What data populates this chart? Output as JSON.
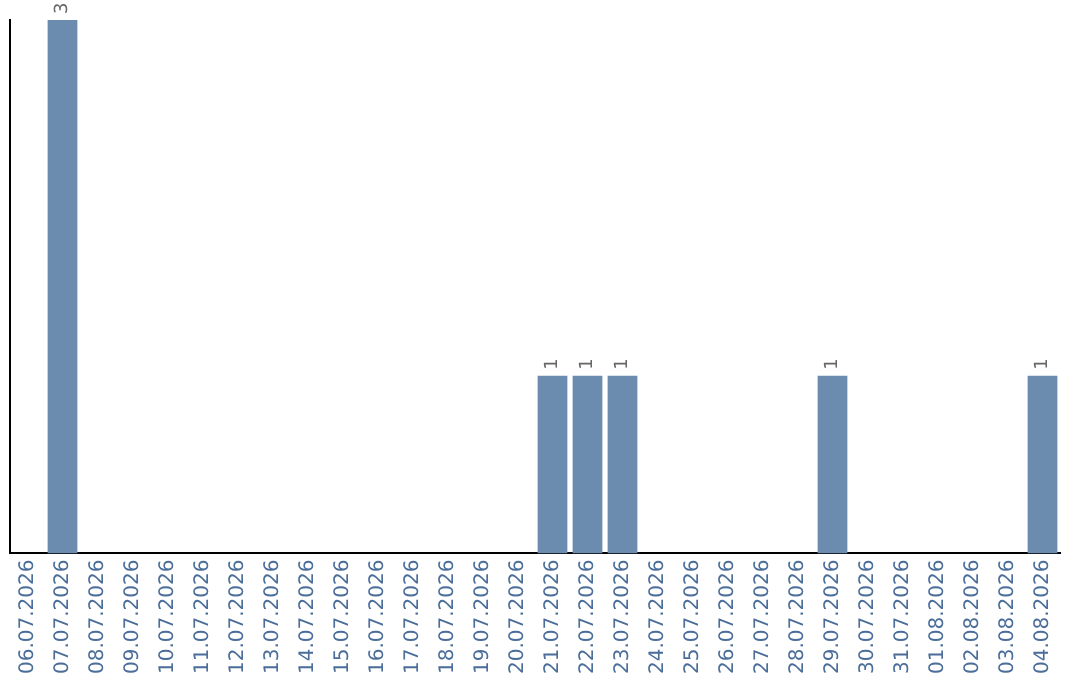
{
  "chart_data": {
    "type": "bar",
    "categories": [
      "06.07.2026",
      "07.07.2026",
      "08.07.2026",
      "09.07.2026",
      "10.07.2026",
      "11.07.2026",
      "12.07.2026",
      "13.07.2026",
      "14.07.2026",
      "15.07.2026",
      "16.07.2026",
      "17.07.2026",
      "18.07.2026",
      "19.07.2026",
      "20.07.2026",
      "21.07.2026",
      "22.07.2026",
      "23.07.2026",
      "24.07.2026",
      "25.07.2026",
      "26.07.2026",
      "27.07.2026",
      "28.07.2026",
      "29.07.2026",
      "30.07.2026",
      "31.07.2026",
      "01.08.2026",
      "02.08.2026",
      "03.08.2026",
      "04.08.2026"
    ],
    "values": [
      0,
      3,
      0,
      0,
      0,
      0,
      0,
      0,
      0,
      0,
      0,
      0,
      0,
      0,
      0,
      1,
      1,
      1,
      0,
      0,
      0,
      0,
      0,
      1,
      0,
      0,
      0,
      0,
      0,
      1
    ],
    "value_labels": [
      null,
      "3",
      null,
      null,
      null,
      null,
      null,
      null,
      null,
      null,
      null,
      null,
      null,
      null,
      null,
      "1",
      "1",
      "1",
      null,
      null,
      null,
      null,
      null,
      "1",
      null,
      null,
      null,
      null,
      null,
      "1"
    ],
    "color": "#6b8cae",
    "grid": false,
    "legend": false,
    "tick_labels": "x"
  }
}
